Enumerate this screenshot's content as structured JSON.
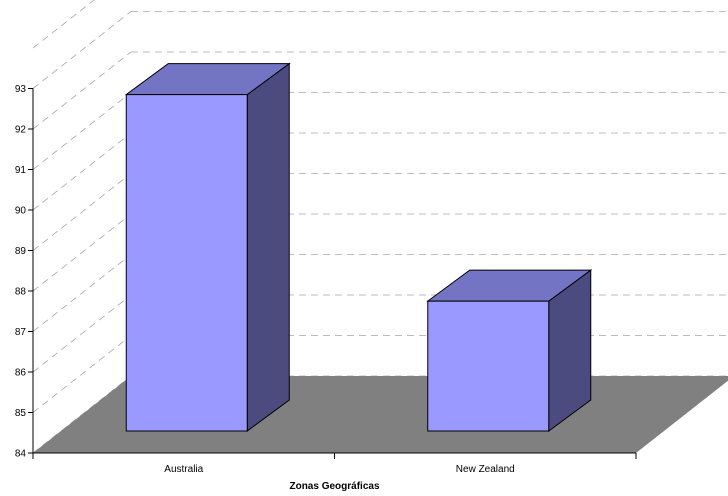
{
  "chart_data": {
    "type": "bar",
    "categories": [
      "Australia",
      "New Zealand"
    ],
    "values": [
      92.8,
      87.7
    ],
    "xlabel": "Zonas Geográficas",
    "ylabel": "",
    "ylim": [
      84,
      93
    ],
    "yticks": [
      84,
      85,
      86,
      87,
      88,
      89,
      90,
      91,
      92,
      93
    ],
    "grid": true,
    "three_d": true,
    "colors": {
      "bar_front": "#9999ff",
      "bar_top": "#7474c4",
      "bar_side": "#4b4b80",
      "floor": "#808080",
      "gridline": "#a6a6a6"
    }
  }
}
